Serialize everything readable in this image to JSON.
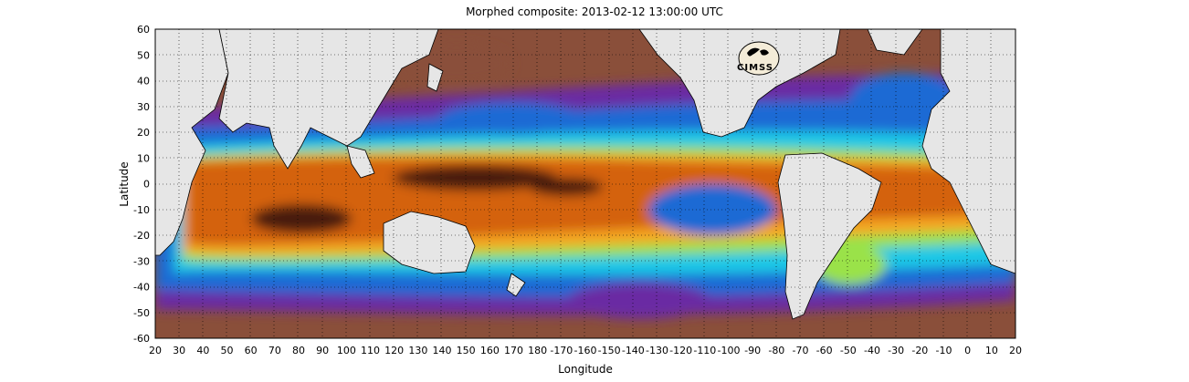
{
  "title": "Morphed composite: 2013-02-12 13:00:00 UTC",
  "xlabel": "Longitude",
  "ylabel": "Latitude",
  "logo_text": "CIMSS",
  "x_ticks": [
    "20",
    "30",
    "40",
    "50",
    "60",
    "70",
    "80",
    "90",
    "100",
    "110",
    "120",
    "130",
    "140",
    "150",
    "160",
    "170",
    "180",
    "-170",
    "-160",
    "-150",
    "-140",
    "-130",
    "-120",
    "-110",
    "-100",
    "-90",
    "-80",
    "-70",
    "-60",
    "-50",
    "-40",
    "-30",
    "-20",
    "-10",
    "0",
    "10",
    "20"
  ],
  "y_ticks": [
    "60",
    "50",
    "40",
    "30",
    "20",
    "10",
    "0",
    "-10",
    "-20",
    "-30",
    "-40",
    "-50",
    "-60"
  ],
  "colors": {
    "land": "#e6e6e6",
    "moist_core": "#4a1e0c",
    "moist": "#d4620d",
    "mid_high": "#f5a623",
    "mid": "#9ae24a",
    "cyan": "#1ec8e6",
    "blue": "#1a6ad4",
    "purple": "#6b2aa3",
    "dry": "#8a4f3a"
  }
}
